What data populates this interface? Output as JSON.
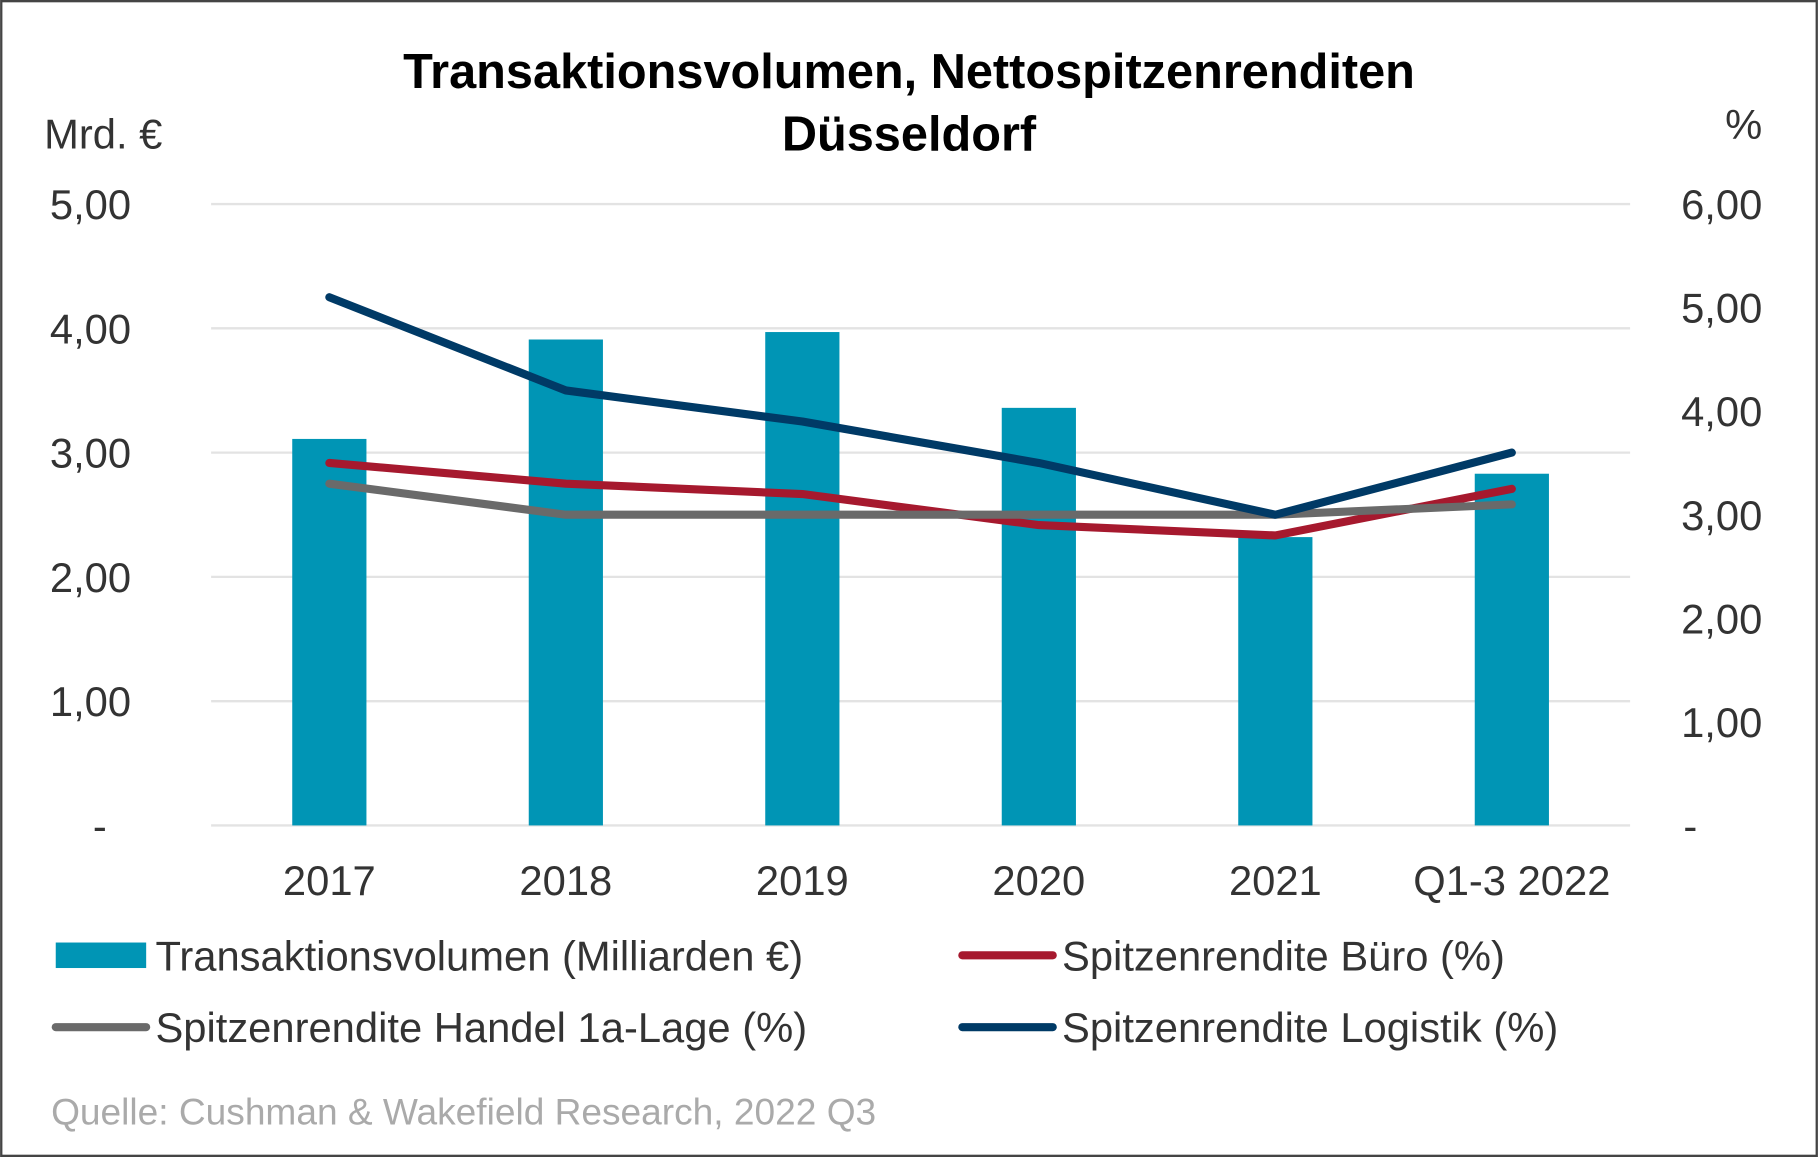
{
  "chart_data": {
    "type": "bar+line",
    "title": "Transaktionsvolumen, Nettospitzenrenditen",
    "subtitle": "Düsseldorf",
    "ylabel_left": "Mrd. €",
    "ylabel_right": "%",
    "ylim_left": [
      0,
      5
    ],
    "ylim_right": [
      0,
      6
    ],
    "yticks_left": [
      "-",
      "1,00",
      "2,00",
      "3,00",
      "4,00",
      "5,00"
    ],
    "yticks_right": [
      "-",
      "1,00",
      "2,00",
      "3,00",
      "4,00",
      "5,00",
      "6,00"
    ],
    "grid": true,
    "categories": [
      "2017",
      "2018",
      "2019",
      "2020",
      "2021",
      "Q1-3 2022"
    ],
    "series": [
      {
        "name": "Transaktionsvolumen (Milliarden €)",
        "kind": "bar",
        "axis": "left",
        "color": "#0095B5",
        "values": [
          3.11,
          3.91,
          3.97,
          3.36,
          2.32,
          2.83
        ]
      },
      {
        "name": "Spitzenrendite Büro (%)",
        "kind": "line",
        "axis": "right",
        "color": "#A6192E",
        "values": [
          3.5,
          3.3,
          3.2,
          2.9,
          2.8,
          3.25
        ]
      },
      {
        "name": "Spitzenrendite Handel 1a-Lage (%)",
        "kind": "line",
        "axis": "right",
        "color": "#6A6A6A",
        "values": [
          3.3,
          3.0,
          3.0,
          3.0,
          3.0,
          3.1
        ]
      },
      {
        "name": "Spitzenrendite Logistik (%)",
        "kind": "line",
        "axis": "right",
        "color": "#003A66",
        "values": [
          5.1,
          4.2,
          3.9,
          3.5,
          3.0,
          3.6
        ]
      }
    ],
    "legend": "bottom",
    "source": "Quelle: Cushman & Wakefield Research, 2022 Q3"
  }
}
